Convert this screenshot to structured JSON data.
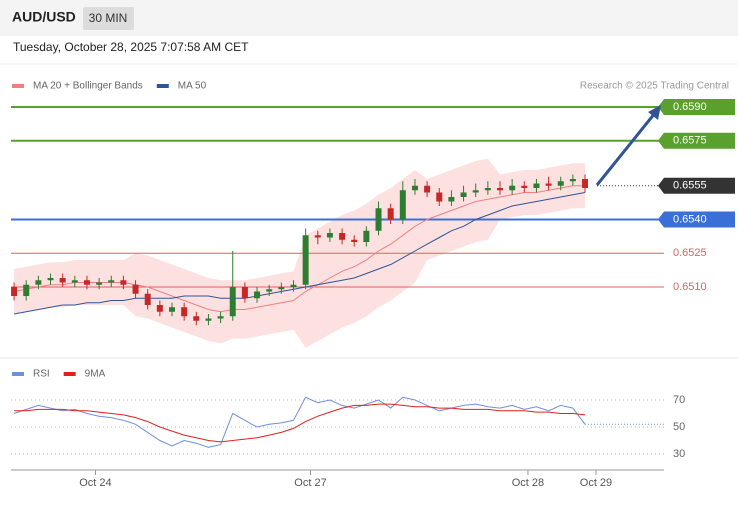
{
  "header": {
    "symbol": "AUD/USD",
    "timeframe": "30 MIN",
    "timestamp": "Tuesday, October 28, 2025 7:07:58 AM CET"
  },
  "chart_data": [
    {
      "type": "candlestick",
      "credit": "Research © 2025 Trading Central",
      "xlim": [
        -0.5,
        53.5
      ],
      "ylim": [
        0.648,
        0.661
      ],
      "up_color": "#2e7d32",
      "down_color": "#c62828",
      "open": [
        0.651,
        0.6506,
        0.6511,
        0.6513,
        0.6514,
        0.6512,
        0.6513,
        0.6511,
        0.6512,
        0.6513,
        0.6511,
        0.6507,
        0.6502,
        0.6499,
        0.6501,
        0.6497,
        0.6495,
        0.6496,
        0.6497,
        0.651,
        0.6505,
        0.6508,
        0.6509,
        0.651,
        0.6511,
        0.6533,
        0.6532,
        0.6534,
        0.6531,
        0.653,
        0.6535,
        0.6545,
        0.654,
        0.6553,
        0.6555,
        0.6552,
        0.6548,
        0.655,
        0.6552,
        0.6553,
        0.6554,
        0.6553,
        0.6555,
        0.6554,
        0.6556,
        0.6555,
        0.6557,
        0.6558
      ],
      "high": [
        0.6512,
        0.6513,
        0.6515,
        0.6516,
        0.6516,
        0.6515,
        0.6515,
        0.6514,
        0.6515,
        0.6515,
        0.6513,
        0.6509,
        0.6504,
        0.6503,
        0.6503,
        0.6499,
        0.6498,
        0.6499,
        0.6526,
        0.6512,
        0.651,
        0.6511,
        0.6512,
        0.6513,
        0.6536,
        0.6535,
        0.6536,
        0.6536,
        0.6533,
        0.6537,
        0.6548,
        0.6547,
        0.6557,
        0.6558,
        0.6557,
        0.6554,
        0.6553,
        0.6555,
        0.6556,
        0.6557,
        0.6557,
        0.6558,
        0.6557,
        0.6558,
        0.6559,
        0.6559,
        0.656,
        0.656
      ],
      "low": [
        0.6504,
        0.6504,
        0.6509,
        0.6511,
        0.651,
        0.651,
        0.6509,
        0.6509,
        0.651,
        0.6509,
        0.6505,
        0.65,
        0.6497,
        0.6497,
        0.6495,
        0.6493,
        0.6493,
        0.6494,
        0.6495,
        0.6503,
        0.6503,
        0.6506,
        0.6507,
        0.6508,
        0.6509,
        0.6529,
        0.653,
        0.6529,
        0.6528,
        0.6528,
        0.6533,
        0.6538,
        0.6538,
        0.6551,
        0.655,
        0.6546,
        0.6546,
        0.6548,
        0.655,
        0.6551,
        0.6551,
        0.6551,
        0.6552,
        0.6552,
        0.6553,
        0.6553,
        0.6555,
        0.6552
      ],
      "close": [
        0.6506,
        0.6511,
        0.6513,
        0.6514,
        0.6512,
        0.6513,
        0.6511,
        0.6512,
        0.6513,
        0.6511,
        0.6507,
        0.6502,
        0.6499,
        0.6501,
        0.6497,
        0.6495,
        0.6496,
        0.6497,
        0.651,
        0.6505,
        0.6508,
        0.6509,
        0.651,
        0.6511,
        0.6533,
        0.6532,
        0.6534,
        0.6531,
        0.653,
        0.6535,
        0.6545,
        0.654,
        0.6553,
        0.6555,
        0.6552,
        0.6548,
        0.655,
        0.6552,
        0.6553,
        0.6554,
        0.6553,
        0.6555,
        0.6554,
        0.6556,
        0.6555,
        0.6557,
        0.6558,
        0.6554
      ],
      "series": [
        {
          "name": "MA 20 + Bollinger Bands",
          "color": "#f08080",
          "band_color": "#fde0e0",
          "values": [
            0.6508,
            0.6509,
            0.651,
            0.6511,
            0.6511,
            0.6512,
            0.6512,
            0.6512,
            0.6512,
            0.6512,
            0.6511,
            0.651,
            0.6508,
            0.6506,
            0.6504,
            0.6502,
            0.65,
            0.6499,
            0.65,
            0.65,
            0.6501,
            0.6502,
            0.6503,
            0.6504,
            0.6508,
            0.6511,
            0.6514,
            0.6517,
            0.6519,
            0.6522,
            0.6526,
            0.6529,
            0.6533,
            0.6537,
            0.654,
            0.6542,
            0.6544,
            0.6546,
            0.6548,
            0.6549,
            0.655,
            0.6551,
            0.6552,
            0.6552,
            0.6553,
            0.6554,
            0.6555,
            0.6555
          ],
          "upper": [
            0.6518,
            0.6519,
            0.652,
            0.6521,
            0.6521,
            0.6522,
            0.6522,
            0.6522,
            0.6522,
            0.6522,
            0.6525,
            0.6524,
            0.6522,
            0.652,
            0.6518,
            0.6516,
            0.6514,
            0.6513,
            0.6513,
            0.6513,
            0.6514,
            0.6515,
            0.6516,
            0.6517,
            0.6533,
            0.6536,
            0.6539,
            0.6542,
            0.6544,
            0.6547,
            0.6551,
            0.6554,
            0.6558,
            0.6562,
            0.6558,
            0.656,
            0.6562,
            0.6564,
            0.6566,
            0.6567,
            0.656,
            0.6561,
            0.6562,
            0.6562,
            0.6563,
            0.6564,
            0.6565,
            0.6565
          ],
          "lower": [
            0.6498,
            0.6499,
            0.65,
            0.6501,
            0.6501,
            0.6502,
            0.6502,
            0.6502,
            0.6502,
            0.6502,
            0.6497,
            0.6496,
            0.6494,
            0.6492,
            0.649,
            0.6488,
            0.6486,
            0.6485,
            0.6487,
            0.6487,
            0.6488,
            0.6489,
            0.649,
            0.6491,
            0.6483,
            0.6486,
            0.6489,
            0.6492,
            0.6494,
            0.6497,
            0.6501,
            0.6504,
            0.6508,
            0.6512,
            0.6522,
            0.6524,
            0.6526,
            0.6528,
            0.653,
            0.6531,
            0.654,
            0.6541,
            0.6542,
            0.6542,
            0.6543,
            0.6544,
            0.6545,
            0.6545
          ]
        },
        {
          "name": "MA 50",
          "color": "#2f5597",
          "values": [
            0.6498,
            0.6499,
            0.65,
            0.6501,
            0.6502,
            0.6502,
            0.6503,
            0.6503,
            0.6504,
            0.6504,
            0.6505,
            0.6505,
            0.6505,
            0.6505,
            0.6506,
            0.6506,
            0.6506,
            0.6505,
            0.6505,
            0.6505,
            0.6506,
            0.6507,
            0.6508,
            0.6509,
            0.651,
            0.6511,
            0.6512,
            0.6513,
            0.6514,
            0.6516,
            0.6518,
            0.652,
            0.6523,
            0.6526,
            0.6529,
            0.6532,
            0.6535,
            0.6537,
            0.654,
            0.6542,
            0.6544,
            0.6546,
            0.6547,
            0.6548,
            0.6549,
            0.655,
            0.6551,
            0.6552
          ]
        }
      ],
      "levels": [
        {
          "value": 0.659,
          "label": "0.6590",
          "color": "#5aa02c",
          "style": "solid",
          "box": true
        },
        {
          "value": 0.6575,
          "label": "0.6575",
          "color": "#5aa02c",
          "style": "solid",
          "box": true
        },
        {
          "value": 0.6555,
          "label": "0.6555",
          "color": "#333333",
          "style": "dotted",
          "box": true
        },
        {
          "value": 0.654,
          "label": "0.6540",
          "color": "#3a6fd8",
          "style": "solid",
          "box": true
        },
        {
          "value": 0.6525,
          "label": "0.6525",
          "color": "#e06060",
          "style": "thin",
          "box": false
        },
        {
          "value": 0.651,
          "label": "0.6510",
          "color": "#e06060",
          "style": "thin",
          "box": false
        }
      ]
    },
    {
      "type": "line",
      "xlim": [
        -0.5,
        53.5
      ],
      "ylim": [
        20,
        80
      ],
      "yticks": [
        30,
        50,
        70
      ],
      "grid": true,
      "xticks": [
        {
          "value": 6.7,
          "label": "Oct 24"
        },
        {
          "value": 24.4,
          "label": "Oct 27"
        },
        {
          "value": 42.3,
          "label": "Oct 28"
        },
        {
          "value": 47.9,
          "label": "Oct 29"
        }
      ],
      "series": [
        {
          "name": "RSI",
          "color": "#6f8fdc",
          "values": [
            60,
            63,
            66,
            64,
            62,
            63,
            60,
            58,
            57,
            55,
            52,
            46,
            40,
            36,
            40,
            38,
            35,
            37,
            60,
            55,
            50,
            52,
            53,
            55,
            72,
            68,
            70,
            66,
            64,
            67,
            70,
            64,
            72,
            70,
            66,
            62,
            64,
            66,
            67,
            65,
            64,
            66,
            63,
            65,
            62,
            66,
            64,
            52
          ]
        },
        {
          "name": "9MA",
          "color": "#e02020",
          "values": [
            62,
            62,
            63,
            63,
            63,
            62,
            62,
            61,
            60,
            59,
            57,
            54,
            50,
            47,
            44,
            42,
            40,
            39,
            40,
            41,
            42,
            44,
            46,
            49,
            54,
            58,
            61,
            64,
            66,
            66,
            67,
            67,
            66,
            65,
            65,
            64,
            64,
            63,
            63,
            63,
            62,
            62,
            62,
            61,
            61,
            60,
            60,
            59
          ]
        }
      ]
    }
  ]
}
